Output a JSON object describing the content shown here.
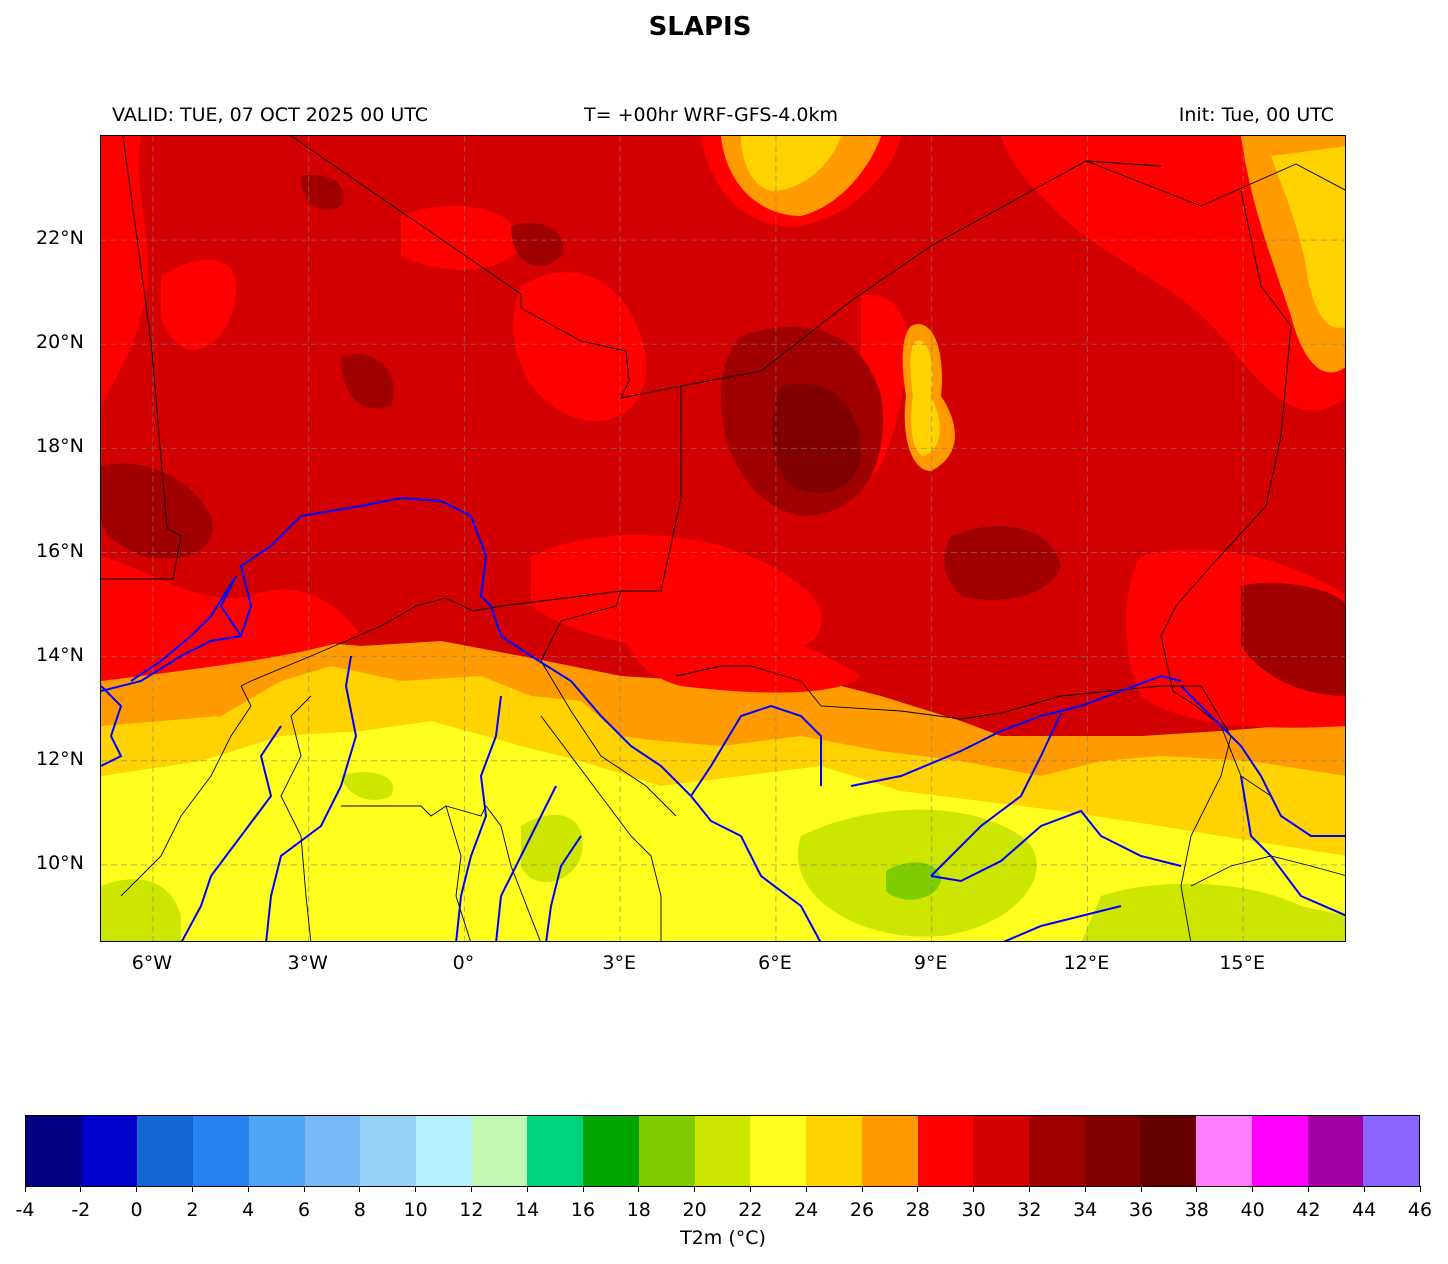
{
  "title": "SLAPIS",
  "header": {
    "valid": "VALID: TUE, 07 OCT 2025 00 UTC",
    "run": "T= +00hr WRF-GFS-4.0km",
    "init": "Init: Tue, 00 UTC"
  },
  "map": {
    "lon_range": [
      -7,
      17
    ],
    "lat_range": [
      8.5,
      24
    ],
    "gridlines": true,
    "lat_ticks": [
      {
        "lat": 22,
        "label": "22°N"
      },
      {
        "lat": 20,
        "label": "20°N"
      },
      {
        "lat": 18,
        "label": "18°N"
      },
      {
        "lat": 16,
        "label": "16°N"
      },
      {
        "lat": 14,
        "label": "14°N"
      },
      {
        "lat": 12,
        "label": "12°N"
      },
      {
        "lat": 10,
        "label": "10°N"
      }
    ],
    "lon_ticks": [
      {
        "lon": -6,
        "label": "6°W"
      },
      {
        "lon": -3,
        "label": "3°W"
      },
      {
        "lon": 0,
        "label": "0°"
      },
      {
        "lon": 3,
        "label": "3°E"
      },
      {
        "lon": 6,
        "label": "6°E"
      },
      {
        "lon": 9,
        "label": "9°E"
      },
      {
        "lon": 12,
        "label": "12°E"
      },
      {
        "lon": 15,
        "label": "15°E"
      }
    ],
    "river_color": "#0000ff",
    "border_color": "#000000"
  },
  "colorbar": {
    "label": "T2m (°C)",
    "ticks": [
      "-4",
      "-2",
      "0",
      "2",
      "4",
      "6",
      "8",
      "10",
      "12",
      "14",
      "16",
      "18",
      "20",
      "22",
      "24",
      "26",
      "28",
      "30",
      "32",
      "34",
      "36",
      "38",
      "40",
      "42",
      "44",
      "46"
    ],
    "colors": [
      "#000080",
      "#0000c8",
      "#1464d2",
      "#2882f0",
      "#50a5f5",
      "#78b9fa",
      "#96d2fa",
      "#b4f0fa",
      "#c0f8b4",
      "#00d27d",
      "#00a500",
      "#7dcd00",
      "#cde600",
      "#ffff1e",
      "#ffd200",
      "#ff9b00",
      "#ff0000",
      "#d20000",
      "#a00000",
      "#800000",
      "#640000",
      "#ff80ff",
      "#ff00ff",
      "#a000a0",
      "#8c64ff"
    ]
  }
}
